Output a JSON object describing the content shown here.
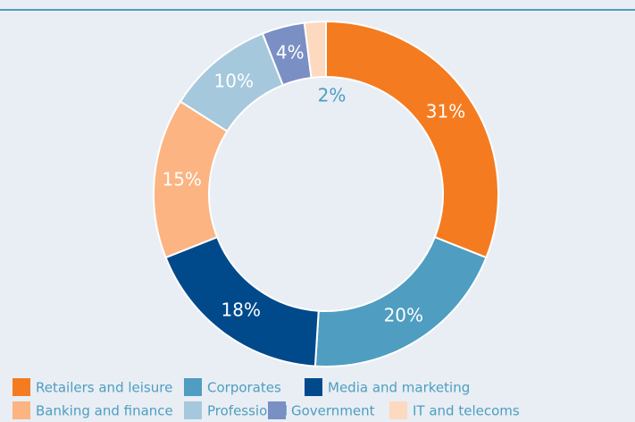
{
  "chart_data": {
    "type": "donut",
    "categories": [
      "Retailers and leisure",
      "Corporates",
      "Media and marketing",
      "Banking and finance",
      "Professional",
      "Government",
      "IT and telecoms"
    ],
    "values": [
      31,
      20,
      18,
      15,
      10,
      4,
      2
    ],
    "value_labels": [
      "31%",
      "20%",
      "18%",
      "15%",
      "10%",
      "4%",
      "2%"
    ],
    "colors": [
      "#f47b20",
      "#4f9dc0",
      "#004a8c",
      "#fbb482",
      "#a5c8dd",
      "#7a8fc4",
      "#fdd9c0"
    ]
  }
}
